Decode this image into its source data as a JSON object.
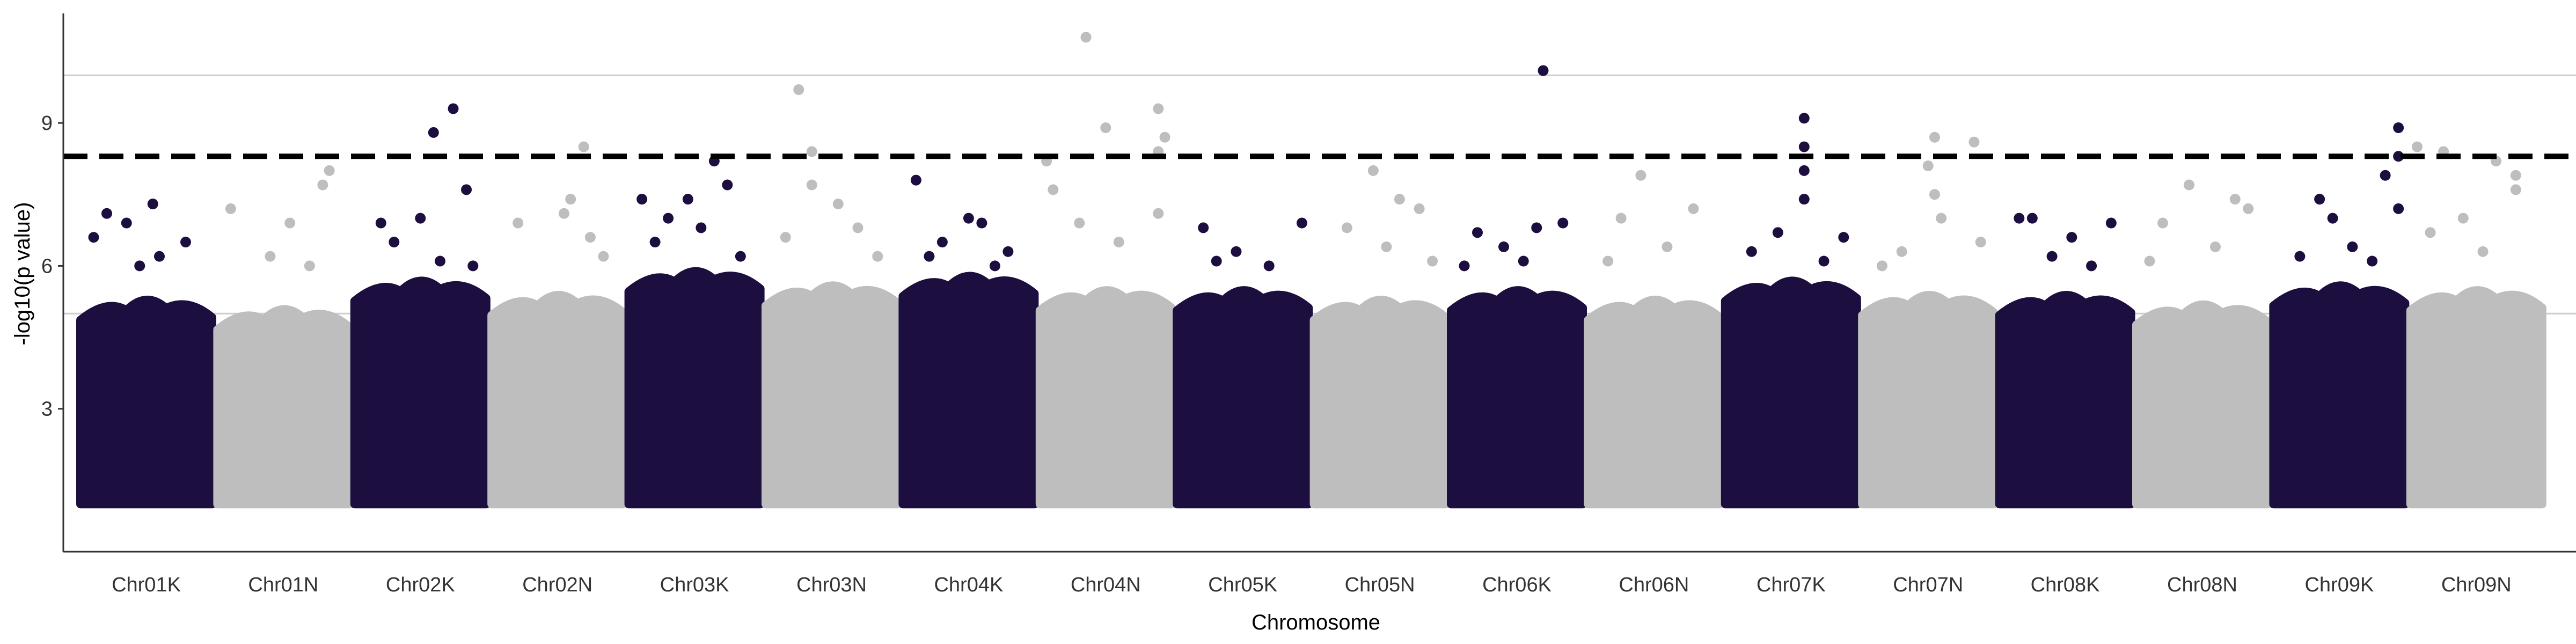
{
  "chart_data": {
    "type": "scatter",
    "xlabel": "Chromosome",
    "ylabel": "-log10(p value)",
    "ylim": [
      0,
      11.3
    ],
    "y_ticks": [
      3,
      6,
      9
    ],
    "reference_lines": [
      5,
      10
    ],
    "significance_threshold": 8.3,
    "grid": false,
    "legend": "none",
    "colors": {
      "odd": "#1c0f3f",
      "even": "#bebebe",
      "threshold": "#000000",
      "reference": "#cccccc",
      "axis": "#333333"
    },
    "chromosomes": [
      "Chr01K",
      "Chr01N",
      "Chr02K",
      "Chr02N",
      "Chr03K",
      "Chr03N",
      "Chr04K",
      "Chr04N",
      "Chr05K",
      "Chr05N",
      "Chr06K",
      "Chr06N",
      "Chr07K",
      "Chr07N",
      "Chr08K",
      "Chr08N",
      "Chr09K",
      "Chr09N"
    ],
    "series": [
      {
        "name": "Chr01K",
        "x_index": 0,
        "base_max": 5.2,
        "points": [
          [
            0.2,
            7.1
          ],
          [
            0.55,
            7.3
          ],
          [
            0.35,
            6.9
          ],
          [
            0.8,
            6.5
          ],
          [
            0.1,
            6.6
          ],
          [
            0.6,
            6.2
          ],
          [
            0.45,
            6.0
          ]
        ]
      },
      {
        "name": "Chr01N",
        "x_index": 1,
        "base_max": 5.0,
        "points": [
          [
            0.85,
            8.0
          ],
          [
            0.8,
            7.7
          ],
          [
            0.1,
            7.2
          ],
          [
            0.55,
            6.9
          ],
          [
            0.4,
            6.2
          ],
          [
            0.7,
            6.0
          ]
        ]
      },
      {
        "name": "Chr02K",
        "x_index": 2,
        "base_max": 5.6,
        "points": [
          [
            0.75,
            9.3
          ],
          [
            0.6,
            8.8
          ],
          [
            0.85,
            7.6
          ],
          [
            0.2,
            6.9
          ],
          [
            0.5,
            7.0
          ],
          [
            0.3,
            6.5
          ],
          [
            0.65,
            6.1
          ],
          [
            0.9,
            6.0
          ]
        ]
      },
      {
        "name": "Chr02N",
        "x_index": 3,
        "base_max": 5.3,
        "points": [
          [
            0.7,
            8.5
          ],
          [
            0.6,
            7.4
          ],
          [
            0.55,
            7.1
          ],
          [
            0.75,
            6.6
          ],
          [
            0.2,
            6.9
          ],
          [
            0.85,
            6.2
          ]
        ]
      },
      {
        "name": "Chr03K",
        "x_index": 4,
        "base_max": 5.8,
        "points": [
          [
            0.65,
            8.2
          ],
          [
            0.75,
            7.7
          ],
          [
            0.1,
            7.4
          ],
          [
            0.45,
            7.4
          ],
          [
            0.3,
            7.0
          ],
          [
            0.55,
            6.8
          ],
          [
            0.2,
            6.5
          ],
          [
            0.85,
            6.2
          ]
        ]
      },
      {
        "name": "Chr03N",
        "x_index": 5,
        "base_max": 5.5,
        "points": [
          [
            0.25,
            9.7
          ],
          [
            0.35,
            8.4
          ],
          [
            0.55,
            7.3
          ],
          [
            0.35,
            7.7
          ],
          [
            0.7,
            6.8
          ],
          [
            0.15,
            6.6
          ],
          [
            0.85,
            6.2
          ]
        ]
      },
      {
        "name": "Chr04K",
        "x_index": 6,
        "base_max": 5.7,
        "points": [
          [
            0.1,
            7.8
          ],
          [
            0.5,
            7.0
          ],
          [
            0.6,
            6.9
          ],
          [
            0.3,
            6.5
          ],
          [
            0.8,
            6.3
          ],
          [
            0.2,
            6.2
          ],
          [
            0.7,
            6.0
          ]
        ]
      },
      {
        "name": "Chr04N",
        "x_index": 7,
        "base_max": 5.4,
        "points": [
          [
            0.35,
            10.8
          ],
          [
            0.9,
            9.3
          ],
          [
            0.5,
            8.9
          ],
          [
            0.95,
            8.7
          ],
          [
            0.9,
            8.4
          ],
          [
            0.05,
            8.2
          ],
          [
            0.1,
            7.6
          ],
          [
            0.9,
            7.1
          ],
          [
            0.3,
            6.9
          ],
          [
            0.6,
            6.5
          ]
        ]
      },
      {
        "name": "Chr05K",
        "x_index": 8,
        "base_max": 5.4,
        "points": [
          [
            0.95,
            6.9
          ],
          [
            0.2,
            6.8
          ],
          [
            0.45,
            6.3
          ],
          [
            0.7,
            6.0
          ],
          [
            0.3,
            6.1
          ]
        ]
      },
      {
        "name": "Chr05N",
        "x_index": 9,
        "base_max": 5.2,
        "points": [
          [
            0.45,
            8.0
          ],
          [
            0.65,
            7.4
          ],
          [
            0.8,
            7.2
          ],
          [
            0.25,
            6.8
          ],
          [
            0.55,
            6.4
          ],
          [
            0.9,
            6.1
          ]
        ]
      },
      {
        "name": "Chr06K",
        "x_index": 10,
        "base_max": 5.4,
        "points": [
          [
            0.7,
            10.1
          ],
          [
            0.85,
            6.9
          ],
          [
            0.65,
            6.8
          ],
          [
            0.2,
            6.7
          ],
          [
            0.4,
            6.4
          ],
          [
            0.55,
            6.1
          ],
          [
            0.1,
            6.0
          ]
        ]
      },
      {
        "name": "Chr06N",
        "x_index": 11,
        "base_max": 5.2,
        "points": [
          [
            0.4,
            7.9
          ],
          [
            0.8,
            7.2
          ],
          [
            0.25,
            7.0
          ],
          [
            0.6,
            6.4
          ],
          [
            0.15,
            6.1
          ]
        ]
      },
      {
        "name": "Chr07K",
        "x_index": 12,
        "base_max": 5.6,
        "points": [
          [
            0.6,
            9.1
          ],
          [
            0.6,
            8.5
          ],
          [
            0.6,
            8.0
          ],
          [
            0.6,
            7.4
          ],
          [
            0.9,
            6.6
          ],
          [
            0.4,
            6.7
          ],
          [
            0.2,
            6.3
          ],
          [
            0.75,
            6.1
          ]
        ]
      },
      {
        "name": "Chr07N",
        "x_index": 13,
        "base_max": 5.3,
        "points": [
          [
            0.55,
            8.7
          ],
          [
            0.85,
            8.6
          ],
          [
            0.5,
            8.1
          ],
          [
            0.55,
            7.5
          ],
          [
            0.6,
            7.0
          ],
          [
            0.9,
            6.5
          ],
          [
            0.3,
            6.3
          ],
          [
            0.15,
            6.0
          ]
        ]
      },
      {
        "name": "Chr08K",
        "x_index": 14,
        "base_max": 5.3,
        "points": [
          [
            0.15,
            7.0
          ],
          [
            0.25,
            7.0
          ],
          [
            0.85,
            6.9
          ],
          [
            0.55,
            6.6
          ],
          [
            0.4,
            6.2
          ],
          [
            0.7,
            6.0
          ]
        ]
      },
      {
        "name": "Chr08N",
        "x_index": 15,
        "base_max": 5.1,
        "points": [
          [
            0.4,
            7.7
          ],
          [
            0.75,
            7.4
          ],
          [
            0.85,
            7.2
          ],
          [
            0.2,
            6.9
          ],
          [
            0.6,
            6.4
          ],
          [
            0.1,
            6.1
          ]
        ]
      },
      {
        "name": "Chr09K",
        "x_index": 16,
        "base_max": 5.5,
        "points": [
          [
            0.95,
            8.9
          ],
          [
            0.95,
            8.3
          ],
          [
            0.85,
            7.9
          ],
          [
            0.95,
            7.2
          ],
          [
            0.35,
            7.4
          ],
          [
            0.45,
            7.0
          ],
          [
            0.6,
            6.4
          ],
          [
            0.2,
            6.2
          ],
          [
            0.75,
            6.1
          ]
        ]
      },
      {
        "name": "Chr09N",
        "x_index": 17,
        "base_max": 5.4,
        "points": [
          [
            0.05,
            8.5
          ],
          [
            0.25,
            8.4
          ],
          [
            0.65,
            8.2
          ],
          [
            0.8,
            7.9
          ],
          [
            0.8,
            7.6
          ],
          [
            0.4,
            7.0
          ],
          [
            0.15,
            6.7
          ],
          [
            0.55,
            6.3
          ]
        ]
      }
    ]
  }
}
